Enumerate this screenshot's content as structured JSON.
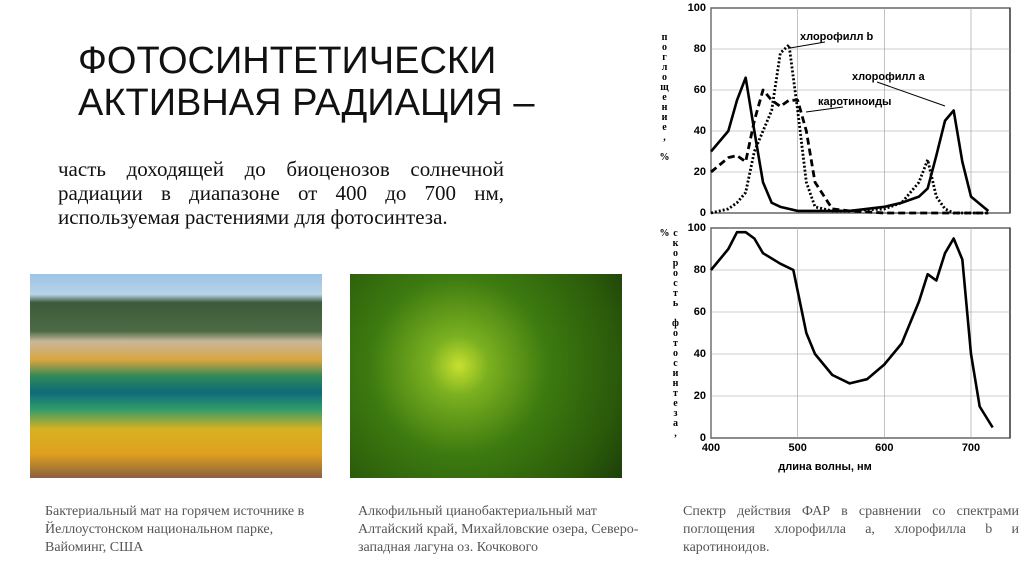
{
  "title": [
    "ФОТОСИНТЕТИЧЕСКИ",
    "АКТИВНАЯ РАДИАЦИЯ –"
  ],
  "body": "часть доходящей до биоценозов солнечной радиации в диапазоне от 400 до 700 нм, используемая растениями для фотосинтеза.",
  "captions": [
    "Бактериальный мат на горячем источнике в Йеллоустонском национальном парке, Вайоминг, США",
    "Алкофильный цианобактериальный мат Алтайский край, Михайловские озера, Северо-западная лагуна оз. Кочкового",
    "Спектр действия ФАР в сравнении со спектрами поглощения хлорофилла а, хлорофилла b и каротиноидов."
  ],
  "chart_data": [
    {
      "type": "line",
      "ylabel": "поглощение, %",
      "x": [
        400,
        420,
        430,
        440,
        450,
        460,
        470,
        480,
        490,
        500,
        510,
        520,
        540,
        560,
        600,
        620,
        640,
        650,
        660,
        670,
        680,
        690,
        700,
        720
      ],
      "series": [
        {
          "name": "хлорофилл b",
          "color": "#000",
          "dash": "dotted",
          "values": [
            0,
            2,
            5,
            10,
            30,
            40,
            50,
            78,
            82,
            50,
            15,
            3,
            1,
            1,
            2,
            5,
            15,
            26,
            8,
            2,
            0,
            0,
            0,
            0
          ]
        },
        {
          "name": "хлорофилл а",
          "color": "#000",
          "dash": "solid",
          "values": [
            30,
            40,
            55,
            66,
            40,
            15,
            5,
            3,
            2,
            1,
            1,
            1,
            1,
            1,
            3,
            5,
            8,
            12,
            28,
            45,
            50,
            25,
            8,
            1
          ]
        },
        {
          "name": "каротиноиды",
          "color": "#000",
          "dash": "dashed",
          "values": [
            20,
            27,
            28,
            25,
            45,
            60,
            55,
            52,
            55,
            55,
            40,
            15,
            2,
            1,
            0,
            0,
            0,
            0,
            0,
            0,
            0,
            0,
            0,
            0
          ]
        }
      ],
      "xlim": [
        400,
        745
      ],
      "ylim": [
        0,
        100
      ],
      "yticks": [
        0,
        20,
        40,
        60,
        80,
        100
      ],
      "grid": true
    },
    {
      "type": "line",
      "ylabel": "скорость фотосинтеза, %",
      "xlabel": "длина волны, нм",
      "x": [
        400,
        420,
        430,
        440,
        450,
        460,
        480,
        495,
        500,
        510,
        520,
        540,
        560,
        580,
        600,
        620,
        640,
        650,
        660,
        670,
        680,
        690,
        700,
        710,
        725
      ],
      "series": [
        {
          "name": null,
          "color": "#000",
          "dash": "solid",
          "values": [
            80,
            90,
            98,
            98,
            95,
            88,
            83,
            80,
            70,
            50,
            40,
            30,
            26,
            28,
            35,
            45,
            65,
            78,
            75,
            88,
            95,
            85,
            40,
            15,
            5
          ]
        }
      ],
      "xlim": [
        400,
        745
      ],
      "ylim": [
        0,
        100
      ],
      "yticks": [
        0,
        20,
        40,
        60,
        80,
        100
      ],
      "xticks": [
        400,
        500,
        600,
        700
      ],
      "grid": true
    }
  ]
}
